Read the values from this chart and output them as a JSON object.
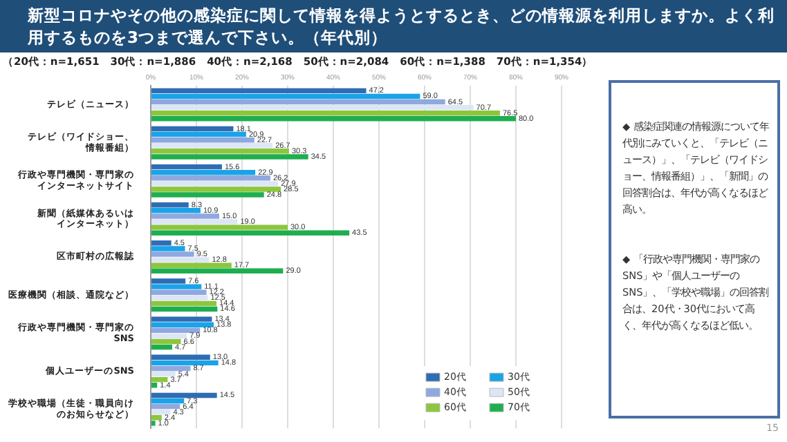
{
  "chart_data": {
    "type": "bar",
    "orientation": "horizontal",
    "title": "新型コロナやその他の感染症に関して情報を得ようとするとき、どの情報源を利用しますか。よく利用するものを3つまで選んで下さい。（年代別）",
    "subtitle": "（20代：n=1,651　30代：n=1,886　40代：n=2,168　50代：n=2,084　60代：n=1,388　70代：n=1,354）",
    "categories": [
      "テレビ（ニュース）",
      "テレビ（ワイドショー、情報番組）",
      "行政や専門機関・専門家のインターネットサイト",
      "新聞（紙媒体あるいはインターネット）",
      "区市町村の広報誌",
      "医療機関（相談、通院など）",
      "行政や専門機関・専門家のSNS",
      "個人ユーザーのSNS",
      "学校や職場（生徒・職員向けのお知らせなど）"
    ],
    "series": [
      {
        "name": "20代",
        "color": "#2e6db4",
        "values": [
          47.2,
          18.1,
          15.6,
          8.3,
          4.5,
          7.6,
          13.4,
          13.0,
          14.5
        ],
        "value_labels": [
          "47.2",
          "18.1",
          "15.6",
          "8.3",
          "4.5",
          "7.6",
          "13.4",
          "13.0",
          "14.5"
        ]
      },
      {
        "name": "30代",
        "color": "#1aa3e8",
        "values": [
          59.0,
          20.9,
          22.9,
          10.9,
          7.5,
          11.1,
          13.8,
          14.8,
          7.3
        ],
        "value_labels": [
          "59.0",
          "20.9",
          "22.9",
          "10.9",
          "7.5",
          "11.1",
          "13.8",
          "14.8",
          "7.3"
        ]
      },
      {
        "name": "40代",
        "color": "#8fa8e0",
        "values": [
          64.5,
          22.7,
          26.2,
          15.0,
          9.5,
          12.2,
          10.8,
          8.7,
          6.4
        ],
        "value_labels": [
          "64.5",
          "22.7",
          "26.2",
          "15.0",
          "9.5",
          "12.2",
          "10.8",
          "8.7",
          "6.4"
        ]
      },
      {
        "name": "50代",
        "color": "#dde6f5",
        "values": [
          70.7,
          26.7,
          27.9,
          19.0,
          12.8,
          12.5,
          7.9,
          5.4,
          4.3
        ],
        "value_labels": [
          "70.7",
          "26.7",
          "27.9",
          "19.0",
          "12.8",
          "12.5",
          "7.9",
          "5.4",
          "4.3"
        ]
      },
      {
        "name": "60代",
        "color": "#8cc63f",
        "values": [
          76.5,
          30.3,
          28.5,
          30.0,
          17.7,
          14.4,
          6.6,
          3.7,
          2.4
        ],
        "value_labels": [
          "76.5",
          "30.3",
          "28.5",
          "30.0",
          "17.7",
          "14.4",
          "6.6",
          "3.7",
          "2.4"
        ]
      },
      {
        "name": "70代",
        "color": "#1fae4f",
        "values": [
          80.0,
          34.5,
          24.8,
          43.5,
          29.0,
          14.6,
          4.7,
          1.4,
          1.0
        ],
        "value_labels": [
          "80.0",
          "34.5",
          "24.8",
          "43.5",
          "29.0",
          "14.6",
          "4.7",
          "1.4",
          "1.0"
        ]
      }
    ],
    "xlim": [
      0,
      90
    ],
    "xticks": [
      {
        "value": 0,
        "label": "0%"
      },
      {
        "value": 10,
        "label": "10%"
      },
      {
        "value": 20,
        "label": "20%"
      },
      {
        "value": 30,
        "label": "30%"
      },
      {
        "value": 40,
        "label": "40%"
      },
      {
        "value": 50,
        "label": "50%"
      },
      {
        "value": 60,
        "label": "60%"
      },
      {
        "value": 70,
        "label": "70%"
      },
      {
        "value": 80,
        "label": "80%"
      },
      {
        "value": 90,
        "label": "90%"
      }
    ],
    "grid": "x",
    "legend": "bottom right",
    "annotations": [
      "◆ 感染症関連の情報源について年代別にみていくと、「テレビ（ニュース）」、「テレビ（ワイドショー、情報番組）」、「新聞」の回答割合は、年代が高くなるほど高い。",
      "◆ 「行政や専門機関・専門家のSNS」や「個人ユーザーのSNS」、「学校や職場」の回答割合は、20代・30代において高く、年代が高くなるほど低い。",
      "15"
    ]
  }
}
